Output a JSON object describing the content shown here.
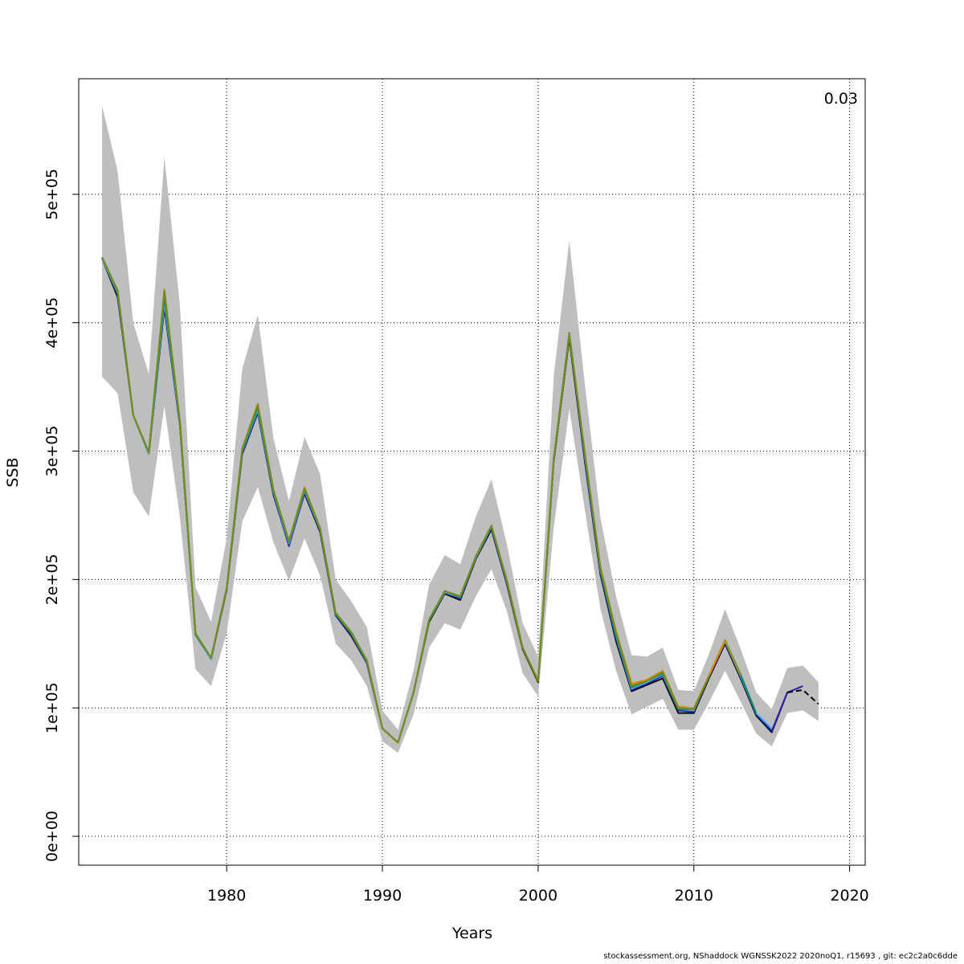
{
  "chart_data": {
    "type": "line",
    "xlabel": "Years",
    "ylabel": "SSB",
    "corner_label": "0.03",
    "xlim": [
      1970.5,
      2021
    ],
    "ylim": [
      -22500,
      590000
    ],
    "x_ticks": [
      1980,
      1990,
      2000,
      2010,
      2020
    ],
    "y_ticks": [
      0,
      100000,
      200000,
      300000,
      400000,
      500000
    ],
    "y_tick_labels": [
      "0e+00",
      "1e+05",
      "2e+05",
      "3e+05",
      "4e+05",
      "5e+05"
    ],
    "grid": true,
    "band_color": "#bebebe",
    "confidence_band": {
      "x": [
        1972,
        1973,
        1974,
        1975,
        1976,
        1977,
        1978,
        1979,
        1980,
        1981,
        1982,
        1983,
        1984,
        1985,
        1986,
        1987,
        1988,
        1989,
        1990,
        1991,
        1992,
        1993,
        1994,
        1995,
        1996,
        1997,
        1998,
        1999,
        2000,
        2001,
        2002,
        2003,
        2004,
        2005,
        2006,
        2007,
        2008,
        2009,
        2010,
        2011,
        2012,
        2013,
        2014,
        2015,
        2016,
        2017,
        2018
      ],
      "lower": [
        358000,
        345000,
        268000,
        249000,
        335000,
        248000,
        130000,
        117000,
        158000,
        245000,
        272000,
        229000,
        199000,
        232000,
        203000,
        150000,
        137000,
        117000,
        74000,
        65000,
        95000,
        147000,
        166000,
        161000,
        187000,
        208000,
        175000,
        127000,
        109000,
        240000,
        333000,
        254000,
        177000,
        129000,
        95000,
        101000,
        107000,
        83000,
        83000,
        105000,
        129000,
        105000,
        80000,
        70000,
        96000,
        98000,
        90000
      ],
      "upper": [
        569000,
        518000,
        400000,
        360000,
        529000,
        413000,
        194000,
        167000,
        232000,
        364000,
        406000,
        310000,
        261000,
        311000,
        282000,
        200000,
        183000,
        163000,
        98000,
        83000,
        129000,
        196000,
        219000,
        212000,
        249000,
        278000,
        227000,
        166000,
        140000,
        358000,
        464000,
        352000,
        248000,
        187000,
        141000,
        140000,
        147000,
        114000,
        113000,
        143000,
        177000,
        146000,
        112000,
        99000,
        131000,
        133000,
        120000
      ]
    },
    "series": [
      {
        "color": "#000000",
        "dashed": false,
        "x": [
          1972,
          1973,
          1974,
          1975,
          1976,
          1977,
          1978,
          1979,
          1980,
          1981,
          1982,
          1983,
          1984,
          1985,
          1986,
          1987,
          1988,
          1989,
          1990,
          1991,
          1992,
          1993,
          1994,
          1995,
          1996,
          1997,
          1998,
          1999,
          2000,
          2001,
          2002,
          2003,
          2004,
          2005,
          2006,
          2007,
          2008,
          2009,
          2010,
          2011,
          2012,
          2013,
          2014,
          2015,
          2016
        ],
        "y": [
          450000,
          420000,
          328000,
          298000,
          412000,
          320000,
          157000,
          138000,
          192000,
          298000,
          330000,
          266000,
          227000,
          267000,
          237000,
          172000,
          156000,
          135000,
          84000,
          73000,
          112000,
          167000,
          189000,
          184000,
          216000,
          239000,
          196000,
          146000,
          120000,
          292000,
          388000,
          292000,
          204000,
          152000,
          113000,
          118000,
          123000,
          96000,
          96000,
          124000,
          150000,
          123000,
          94000,
          81000,
          112000
        ]
      },
      {
        "color": "#2b1fb0",
        "dashed": false,
        "x": [
          1972,
          1973,
          1974,
          1975,
          1976,
          1977,
          1978,
          1979,
          1980,
          1981,
          1982,
          1983,
          1984,
          1985,
          1986,
          1987,
          1988,
          1989,
          1990,
          1991,
          1992,
          1993,
          1994,
          1995,
          1996,
          1997,
          1998,
          1999,
          2000,
          2001,
          2002,
          2003,
          2004,
          2005,
          2006,
          2007,
          2008,
          2009,
          2010,
          2011,
          2012,
          2013,
          2014,
          2015,
          2016,
          2017
        ],
        "y": [
          450000,
          422000,
          328000,
          298000,
          414000,
          320000,
          157000,
          138000,
          192000,
          299000,
          331000,
          267000,
          226000,
          268000,
          238000,
          172000,
          157000,
          135000,
          84000,
          73000,
          112000,
          168000,
          190000,
          185000,
          217000,
          240000,
          197000,
          147000,
          121000,
          293000,
          390000,
          294000,
          206000,
          154000,
          114000,
          119000,
          125000,
          98000,
          97000,
          125000,
          151000,
          124000,
          95000,
          82000,
          112000,
          117000
        ]
      },
      {
        "color": "#000000",
        "dashed": true,
        "x": [
          2016,
          2017,
          2018
        ],
        "y": [
          112000,
          114000,
          103000
        ]
      },
      {
        "color": "#46b4e6",
        "dashed": false,
        "x": [
          1972,
          1973,
          1974,
          1975,
          1976,
          1977,
          1978,
          1979,
          1980,
          1981,
          1982,
          1983,
          1984,
          1985,
          1986,
          1987,
          1988,
          1989,
          1990,
          1991,
          1992,
          1993,
          1994,
          1995,
          1996,
          1997,
          1998,
          1999,
          2000,
          2001,
          2002,
          2003,
          2004,
          2005,
          2006,
          2007,
          2008,
          2009,
          2010,
          2011,
          2012,
          2013,
          2014,
          2015
        ],
        "y": [
          450000,
          423000,
          328000,
          298000,
          416000,
          321000,
          157000,
          138000,
          193000,
          300000,
          332000,
          268000,
          228000,
          269000,
          239000,
          173000,
          158000,
          136000,
          84000,
          73000,
          112000,
          168000,
          190000,
          186000,
          217000,
          241000,
          198000,
          147000,
          121000,
          294000,
          391000,
          296000,
          207000,
          156000,
          115000,
          120000,
          126000,
          99000,
          98000,
          126000,
          152000,
          125000,
          96000,
          84000
        ]
      },
      {
        "color": "#0a8a5a",
        "dashed": false,
        "x": [
          1972,
          1973,
          1974,
          1975,
          1976,
          1977,
          1978,
          1979,
          1980,
          1981,
          1982,
          1983,
          1984,
          1985,
          1986,
          1987,
          1988,
          1989,
          1990,
          1991,
          1992,
          1993,
          1994,
          1995,
          1996,
          1997,
          1998,
          1999,
          2000,
          2001,
          2002,
          2003,
          2004,
          2005,
          2006,
          2007,
          2008,
          2009,
          2010,
          2011,
          2012,
          2013,
          2014
        ],
        "y": [
          451000,
          424000,
          328000,
          299000,
          420000,
          322000,
          157000,
          139000,
          193000,
          301000,
          334000,
          269000,
          229000,
          270000,
          240000,
          173000,
          158000,
          136000,
          84000,
          73000,
          112000,
          168000,
          191000,
          186000,
          218000,
          241000,
          199000,
          147000,
          121000,
          294000,
          392000,
          298000,
          208000,
          157000,
          116000,
          121000,
          127000,
          99000,
          99000,
          126000,
          153000,
          126000,
          96000
        ]
      },
      {
        "color": "#9a9a00",
        "dashed": false,
        "x": [
          1972,
          1973,
          1974,
          1975,
          1976,
          1977,
          1978,
          1979,
          1980,
          1981,
          1982,
          1983,
          1984,
          1985,
          1986,
          1987,
          1988,
          1989,
          1990,
          1991,
          1992,
          1993,
          1994,
          1995,
          1996,
          1997,
          1998,
          1999,
          2000,
          2001,
          2002,
          2003,
          2004,
          2005,
          2006,
          2007,
          2008,
          2009,
          2010,
          2011,
          2012,
          2013
        ],
        "y": [
          451000,
          425000,
          328000,
          299000,
          425000,
          323000,
          158000,
          139000,
          193000,
          302000,
          336000,
          270000,
          230000,
          271000,
          240000,
          174000,
          159000,
          137000,
          84000,
          73000,
          112000,
          169000,
          191000,
          187000,
          218000,
          242000,
          199000,
          147000,
          121000,
          294000,
          391000,
          299000,
          209000,
          159000,
          118000,
          121000,
          128000,
          100000,
          100000,
          126000,
          153000,
          125000
        ]
      },
      {
        "color": "#e68a00",
        "dashed": false,
        "x": [
          1972,
          1973,
          1974,
          1975,
          1976,
          1977,
          1978,
          1979,
          1980,
          1981,
          1982,
          1983,
          1984,
          1985,
          1986,
          1987,
          1988,
          1989,
          1990,
          1991,
          1992,
          1993,
          1994,
          1995,
          1996,
          1997,
          1998,
          1999,
          2000,
          2001,
          2002,
          2003,
          2004,
          2005,
          2006,
          2007,
          2008,
          2009,
          2010,
          2011,
          2012
        ],
        "y": [
          451000,
          425000,
          328000,
          299000,
          426000,
          323000,
          158000,
          139000,
          193000,
          302000,
          337000,
          270000,
          230000,
          272000,
          240000,
          174000,
          159000,
          137000,
          84000,
          73000,
          112000,
          169000,
          191000,
          187000,
          218000,
          242000,
          199000,
          147000,
          121000,
          294000,
          390000,
          299000,
          210000,
          160000,
          119000,
          122000,
          129000,
          101000,
          100000,
          126000,
          152000
        ]
      },
      {
        "color": "#6b8e23",
        "dashed": false,
        "x": [
          1972,
          1973,
          1974,
          1975,
          1976,
          1977,
          1978,
          1979,
          1980,
          1981,
          1982,
          1983,
          1984,
          1985,
          1986,
          1987,
          1988,
          1989,
          1990,
          1991,
          1992,
          1993,
          1994,
          1995,
          1996,
          1997,
          1998,
          1999,
          2000,
          2001,
          2002,
          2003,
          2004,
          2005,
          2006,
          2007,
          2008,
          2009,
          2010,
          2011
        ],
        "y": [
          451000,
          425000,
          328000,
          299000,
          425000,
          323000,
          158000,
          139000,
          193000,
          302000,
          336000,
          270000,
          230000,
          271000,
          240000,
          174000,
          159000,
          137000,
          84000,
          73000,
          112000,
          169000,
          191000,
          187000,
          218000,
          242000,
          199000,
          147000,
          121000,
          294000,
          390000,
          298000,
          209000,
          159000,
          117000,
          121000,
          128000,
          100000,
          99000,
          125000
        ]
      }
    ]
  },
  "footer_text": "stockassessment.org, NShaddock  WGNSSK2022  2020noQ1, r15693 , git: ec2c2a0c6dde"
}
